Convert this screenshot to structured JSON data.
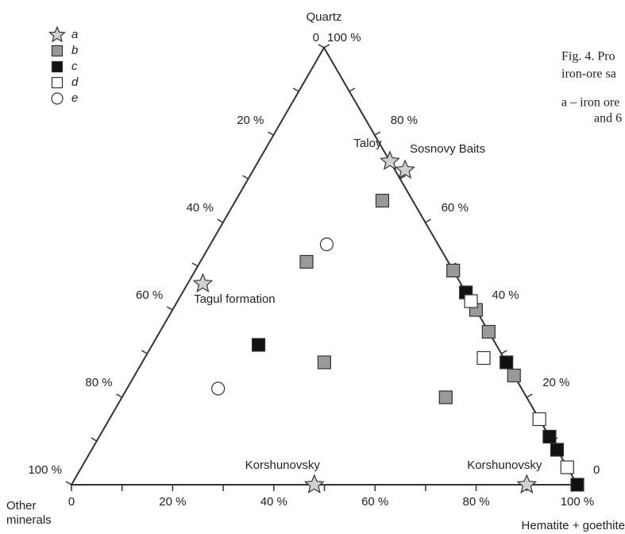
{
  "chart_data": {
    "type": "ternary",
    "vertex_labels": {
      "top": "Quartz",
      "left": "Other minerals",
      "right": "Hematite + goethite"
    },
    "bottom_ticks": [
      0,
      {
        "value": 20,
        "label": "20 %"
      },
      {
        "value": 40,
        "label": "40 %"
      },
      {
        "value": 60,
        "label": "60 %"
      },
      {
        "value": 80,
        "label": "80 %"
      },
      {
        "value": 100,
        "label": "100 %"
      }
    ],
    "left_ticks": [
      0,
      {
        "value": 20,
        "label": "20 %"
      },
      {
        "value": 40,
        "label": "40 %"
      },
      {
        "value": 60,
        "label": "60 %"
      },
      {
        "value": 80,
        "label": "80 %"
      },
      {
        "value": 100,
        "label": "100 %"
      }
    ],
    "right_ticks": [
      {
        "value": 100,
        "label": "100 %"
      },
      {
        "value": 80,
        "label": "80 %"
      },
      {
        "value": 60,
        "label": "60 %"
      },
      {
        "value": 40,
        "label": "40 %"
      },
      {
        "value": 20,
        "label": "20 %"
      },
      0
    ],
    "minor_ticks": [
      10,
      30,
      50,
      70,
      90
    ],
    "series": [
      {
        "name": "a",
        "marker": "star",
        "color": "#d0d0d0",
        "hematite": [
          26,
          30,
          3,
          48,
          90
        ],
        "quartz": [
          74,
          72,
          46,
          0,
          0
        ],
        "labels": [
          "Taloy",
          "Sosnovy Baits",
          "Tagul formation",
          "Korshunovsky",
          "Korshunovsky"
        ]
      },
      {
        "name": "b",
        "marker": "square",
        "color": "#999999",
        "hematite": [
          29,
          21,
          51,
          60,
          65,
          36,
          75,
          64
        ],
        "quartz": [
          65,
          51,
          49,
          40,
          35,
          28,
          25,
          20
        ]
      },
      {
        "name": "c",
        "marker": "square",
        "color": "#111111",
        "hematite": [
          56,
          21,
          72,
          89,
          92,
          100
        ],
        "quartz": [
          44,
          32,
          28,
          11,
          8,
          0
        ]
      },
      {
        "name": "d",
        "marker": "square",
        "color": "#ffffff",
        "hematite": [
          58,
          67,
          85,
          96
        ],
        "quartz": [
          42,
          29,
          15,
          4
        ]
      },
      {
        "name": "e",
        "marker": "circle",
        "color": "#ffffff",
        "hematite": [
          23,
          18
        ],
        "quartz": [
          55,
          22
        ]
      }
    ],
    "caption": [
      "Fig. 4. Pro",
      "iron-ore sa",
      "a – iron ore",
      "and 6"
    ]
  }
}
